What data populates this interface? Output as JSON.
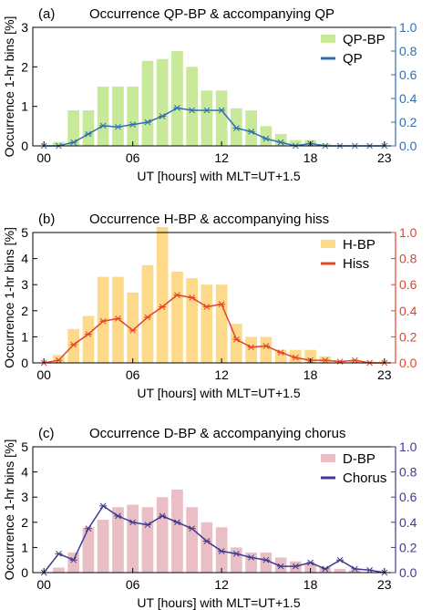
{
  "ylabel": "Occurrence 1-hr bins [%]",
  "xlabel": "UT [hours] with MLT=UT+1.5",
  "chart_data": [
    {
      "type": "bar",
      "panel": "(a)",
      "title": "Occurrence QP-BP & accompanying QP",
      "bar_color": "#c8e89a",
      "line_color": "#2f6fb0",
      "x_ticks": [
        "00",
        "06",
        "12",
        "18",
        "23"
      ],
      "ylim_left": [
        0,
        3
      ],
      "yticks_left": [
        "0",
        "1",
        "2",
        "3"
      ],
      "ylim_right": [
        0,
        1.0
      ],
      "yticks_right": [
        "0.0",
        "0.2",
        "0.4",
        "0.6",
        "0.8",
        "1.0"
      ],
      "hours": [
        0,
        1,
        2,
        3,
        4,
        5,
        6,
        7,
        8,
        9,
        10,
        11,
        12,
        13,
        14,
        15,
        16,
        17,
        18,
        19,
        20,
        21,
        22,
        23
      ],
      "series": [
        {
          "name": "QP-BP",
          "axis": "left",
          "values": [
            0,
            0.1,
            0.9,
            0.9,
            1.5,
            1.5,
            1.5,
            2.15,
            2.2,
            2.4,
            2.0,
            1.4,
            1.4,
            0.95,
            0.9,
            0.5,
            0.3,
            0.15,
            0.15,
            0.05,
            0,
            0,
            0,
            0
          ]
        },
        {
          "name": "QP",
          "axis": "right",
          "values": [
            0,
            0,
            0.03,
            0.1,
            0.17,
            0.16,
            0.18,
            0.2,
            0.25,
            0.32,
            0.3,
            0.3,
            0.3,
            0.15,
            0.12,
            0.06,
            0.03,
            0.0,
            0.02,
            0.0,
            0.0,
            0.0,
            0.0,
            0.0
          ]
        }
      ]
    },
    {
      "type": "bar",
      "panel": "(b)",
      "title": "Occurrence H-BP & accompanying hiss",
      "bar_color": "#fdd98a",
      "line_color": "#e0452b",
      "x_ticks": [
        "00",
        "06",
        "12",
        "18",
        "23"
      ],
      "ylim_left": [
        0,
        5
      ],
      "yticks_left": [
        "0",
        "1",
        "2",
        "3",
        "4",
        "5"
      ],
      "ylim_right": [
        0,
        1.0
      ],
      "yticks_right": [
        "0.0",
        "0.2",
        "0.4",
        "0.6",
        "0.8",
        "1.0"
      ],
      "hours": [
        0,
        1,
        2,
        3,
        4,
        5,
        6,
        7,
        8,
        9,
        10,
        11,
        12,
        13,
        14,
        15,
        16,
        17,
        18,
        19,
        20,
        21,
        22,
        23
      ],
      "series": [
        {
          "name": "H-BP",
          "axis": "left",
          "values": [
            0,
            0.3,
            1.3,
            1.8,
            3.3,
            3.3,
            2.7,
            3.75,
            5.3,
            3.5,
            3.25,
            3.0,
            3.0,
            1.5,
            1.0,
            1.0,
            0.5,
            0.5,
            0.5,
            0.25,
            0.1,
            0.1,
            0.05,
            0.05
          ]
        },
        {
          "name": "Hiss",
          "axis": "right",
          "values": [
            0,
            0.02,
            0.14,
            0.22,
            0.32,
            0.34,
            0.25,
            0.35,
            0.43,
            0.52,
            0.5,
            0.43,
            0.45,
            0.18,
            0.12,
            0.13,
            0.08,
            0.04,
            0.02,
            0.02,
            0.01,
            0.02,
            0.0,
            0.0
          ]
        }
      ]
    },
    {
      "type": "bar",
      "panel": "(c)",
      "title": "Occurrence D-BP & accompanying chorus",
      "bar_color": "#e9bfc5",
      "line_color": "#3f3a8f",
      "x_ticks": [
        "00",
        "06",
        "12",
        "18",
        "23"
      ],
      "ylim_left": [
        0,
        5
      ],
      "yticks_left": [
        "0",
        "1",
        "2",
        "3",
        "4",
        "5"
      ],
      "ylim_right": [
        0,
        1.0
      ],
      "yticks_right": [
        "0.0",
        "0.2",
        "0.4",
        "0.6",
        "0.8",
        "1.0"
      ],
      "hours": [
        0,
        1,
        2,
        3,
        4,
        5,
        6,
        7,
        8,
        9,
        10,
        11,
        12,
        13,
        14,
        15,
        16,
        17,
        18,
        19,
        20,
        21,
        22,
        23
      ],
      "series": [
        {
          "name": "D-BP",
          "axis": "left",
          "values": [
            0,
            0.2,
            0.8,
            1.8,
            2.1,
            2.6,
            2.7,
            2.6,
            3.0,
            3.3,
            2.6,
            2.0,
            1.8,
            1.0,
            0.8,
            0.8,
            0.6,
            0.45,
            0.35,
            0.2,
            0.15,
            0.1,
            0.0,
            0.0
          ]
        },
        {
          "name": "Chorus",
          "axis": "right",
          "values": [
            0,
            0.15,
            0.1,
            0.35,
            0.53,
            0.45,
            0.4,
            0.38,
            0.45,
            0.4,
            0.35,
            0.25,
            0.17,
            0.15,
            0.12,
            0.1,
            0.05,
            0.05,
            0.08,
            0.03,
            0.1,
            0.03,
            0.02,
            0.0
          ]
        }
      ]
    }
  ]
}
